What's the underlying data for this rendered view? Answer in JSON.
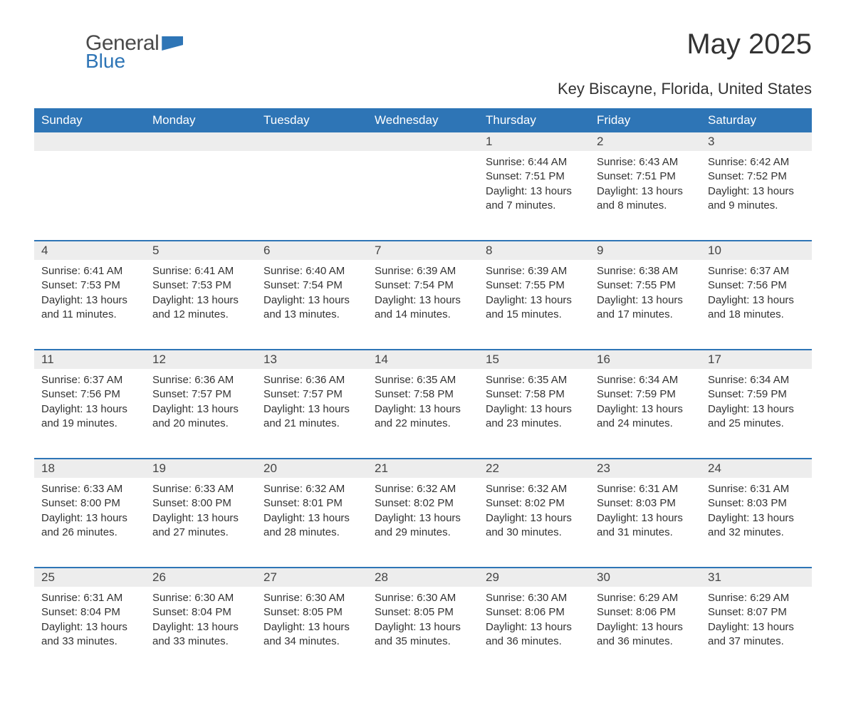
{
  "brand": {
    "word1": "General",
    "word2": "Blue"
  },
  "title": "May 2025",
  "location": "Key Biscayne, Florida, United States",
  "colors": {
    "header_bg": "#2e75b6",
    "header_text": "#ffffff",
    "daynum_bg": "#ededed",
    "row_divider": "#2e75b6",
    "body_text": "#333333",
    "page_bg": "#ffffff"
  },
  "typography": {
    "title_fontsize": 40,
    "location_fontsize": 22,
    "header_fontsize": 17,
    "daynum_fontsize": 17,
    "cell_fontsize": 15
  },
  "weekdays": [
    "Sunday",
    "Monday",
    "Tuesday",
    "Wednesday",
    "Thursday",
    "Friday",
    "Saturday"
  ],
  "weeks": [
    [
      null,
      null,
      null,
      null,
      {
        "n": "1",
        "sr": "Sunrise: 6:44 AM",
        "ss": "Sunset: 7:51 PM",
        "d1": "Daylight: 13 hours",
        "d2": "and 7 minutes."
      },
      {
        "n": "2",
        "sr": "Sunrise: 6:43 AM",
        "ss": "Sunset: 7:51 PM",
        "d1": "Daylight: 13 hours",
        "d2": "and 8 minutes."
      },
      {
        "n": "3",
        "sr": "Sunrise: 6:42 AM",
        "ss": "Sunset: 7:52 PM",
        "d1": "Daylight: 13 hours",
        "d2": "and 9 minutes."
      }
    ],
    [
      {
        "n": "4",
        "sr": "Sunrise: 6:41 AM",
        "ss": "Sunset: 7:53 PM",
        "d1": "Daylight: 13 hours",
        "d2": "and 11 minutes."
      },
      {
        "n": "5",
        "sr": "Sunrise: 6:41 AM",
        "ss": "Sunset: 7:53 PM",
        "d1": "Daylight: 13 hours",
        "d2": "and 12 minutes."
      },
      {
        "n": "6",
        "sr": "Sunrise: 6:40 AM",
        "ss": "Sunset: 7:54 PM",
        "d1": "Daylight: 13 hours",
        "d2": "and 13 minutes."
      },
      {
        "n": "7",
        "sr": "Sunrise: 6:39 AM",
        "ss": "Sunset: 7:54 PM",
        "d1": "Daylight: 13 hours",
        "d2": "and 14 minutes."
      },
      {
        "n": "8",
        "sr": "Sunrise: 6:39 AM",
        "ss": "Sunset: 7:55 PM",
        "d1": "Daylight: 13 hours",
        "d2": "and 15 minutes."
      },
      {
        "n": "9",
        "sr": "Sunrise: 6:38 AM",
        "ss": "Sunset: 7:55 PM",
        "d1": "Daylight: 13 hours",
        "d2": "and 17 minutes."
      },
      {
        "n": "10",
        "sr": "Sunrise: 6:37 AM",
        "ss": "Sunset: 7:56 PM",
        "d1": "Daylight: 13 hours",
        "d2": "and 18 minutes."
      }
    ],
    [
      {
        "n": "11",
        "sr": "Sunrise: 6:37 AM",
        "ss": "Sunset: 7:56 PM",
        "d1": "Daylight: 13 hours",
        "d2": "and 19 minutes."
      },
      {
        "n": "12",
        "sr": "Sunrise: 6:36 AM",
        "ss": "Sunset: 7:57 PM",
        "d1": "Daylight: 13 hours",
        "d2": "and 20 minutes."
      },
      {
        "n": "13",
        "sr": "Sunrise: 6:36 AM",
        "ss": "Sunset: 7:57 PM",
        "d1": "Daylight: 13 hours",
        "d2": "and 21 minutes."
      },
      {
        "n": "14",
        "sr": "Sunrise: 6:35 AM",
        "ss": "Sunset: 7:58 PM",
        "d1": "Daylight: 13 hours",
        "d2": "and 22 minutes."
      },
      {
        "n": "15",
        "sr": "Sunrise: 6:35 AM",
        "ss": "Sunset: 7:58 PM",
        "d1": "Daylight: 13 hours",
        "d2": "and 23 minutes."
      },
      {
        "n": "16",
        "sr": "Sunrise: 6:34 AM",
        "ss": "Sunset: 7:59 PM",
        "d1": "Daylight: 13 hours",
        "d2": "and 24 minutes."
      },
      {
        "n": "17",
        "sr": "Sunrise: 6:34 AM",
        "ss": "Sunset: 7:59 PM",
        "d1": "Daylight: 13 hours",
        "d2": "and 25 minutes."
      }
    ],
    [
      {
        "n": "18",
        "sr": "Sunrise: 6:33 AM",
        "ss": "Sunset: 8:00 PM",
        "d1": "Daylight: 13 hours",
        "d2": "and 26 minutes."
      },
      {
        "n": "19",
        "sr": "Sunrise: 6:33 AM",
        "ss": "Sunset: 8:00 PM",
        "d1": "Daylight: 13 hours",
        "d2": "and 27 minutes."
      },
      {
        "n": "20",
        "sr": "Sunrise: 6:32 AM",
        "ss": "Sunset: 8:01 PM",
        "d1": "Daylight: 13 hours",
        "d2": "and 28 minutes."
      },
      {
        "n": "21",
        "sr": "Sunrise: 6:32 AM",
        "ss": "Sunset: 8:02 PM",
        "d1": "Daylight: 13 hours",
        "d2": "and 29 minutes."
      },
      {
        "n": "22",
        "sr": "Sunrise: 6:32 AM",
        "ss": "Sunset: 8:02 PM",
        "d1": "Daylight: 13 hours",
        "d2": "and 30 minutes."
      },
      {
        "n": "23",
        "sr": "Sunrise: 6:31 AM",
        "ss": "Sunset: 8:03 PM",
        "d1": "Daylight: 13 hours",
        "d2": "and 31 minutes."
      },
      {
        "n": "24",
        "sr": "Sunrise: 6:31 AM",
        "ss": "Sunset: 8:03 PM",
        "d1": "Daylight: 13 hours",
        "d2": "and 32 minutes."
      }
    ],
    [
      {
        "n": "25",
        "sr": "Sunrise: 6:31 AM",
        "ss": "Sunset: 8:04 PM",
        "d1": "Daylight: 13 hours",
        "d2": "and 33 minutes."
      },
      {
        "n": "26",
        "sr": "Sunrise: 6:30 AM",
        "ss": "Sunset: 8:04 PM",
        "d1": "Daylight: 13 hours",
        "d2": "and 33 minutes."
      },
      {
        "n": "27",
        "sr": "Sunrise: 6:30 AM",
        "ss": "Sunset: 8:05 PM",
        "d1": "Daylight: 13 hours",
        "d2": "and 34 minutes."
      },
      {
        "n": "28",
        "sr": "Sunrise: 6:30 AM",
        "ss": "Sunset: 8:05 PM",
        "d1": "Daylight: 13 hours",
        "d2": "and 35 minutes."
      },
      {
        "n": "29",
        "sr": "Sunrise: 6:30 AM",
        "ss": "Sunset: 8:06 PM",
        "d1": "Daylight: 13 hours",
        "d2": "and 36 minutes."
      },
      {
        "n": "30",
        "sr": "Sunrise: 6:29 AM",
        "ss": "Sunset: 8:06 PM",
        "d1": "Daylight: 13 hours",
        "d2": "and 36 minutes."
      },
      {
        "n": "31",
        "sr": "Sunrise: 6:29 AM",
        "ss": "Sunset: 8:07 PM",
        "d1": "Daylight: 13 hours",
        "d2": "and 37 minutes."
      }
    ]
  ]
}
